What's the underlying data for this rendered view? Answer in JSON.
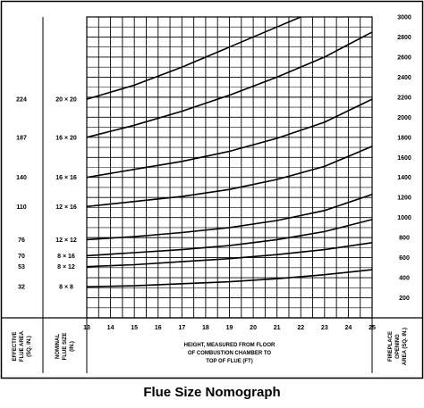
{
  "chart_data": {
    "type": "line",
    "title": "Flue Size Nomograph",
    "xlabel": [
      "HEIGHT, MEASURED FROM FLOOR",
      "OF COMBUSTION CHAMBER TO",
      "TOP OF FLUE (FT)"
    ],
    "x_ticks": [
      13,
      14,
      15,
      16,
      17,
      18,
      19,
      20,
      21,
      22,
      23,
      24,
      25
    ],
    "xlim": [
      13,
      25
    ],
    "right_axis": {
      "label": [
        "FIREPLACE",
        "OPENING",
        "AREA (SQ. IN.)"
      ],
      "ticks": [
        200,
        400,
        600,
        800,
        1000,
        1200,
        1400,
        1600,
        1800,
        2000,
        2200,
        2400,
        2600,
        2800,
        3000
      ],
      "ylim": [
        0,
        3000
      ]
    },
    "left_axis_1": {
      "label": [
        "EFFECTIVE",
        "FLUE AREA",
        "(SQ. IN.)"
      ],
      "values": [
        "224",
        "187",
        "140",
        "110",
        "76",
        "70",
        "53",
        "32"
      ]
    },
    "left_axis_2": {
      "label": [
        "NOMINAL",
        "FLUE SIZE",
        "(IN.)"
      ],
      "values": [
        "20 × 20",
        "16 × 20",
        "16 × 16",
        "12 × 16",
        "12 × 12",
        "8 × 16",
        "8 × 12",
        "8 × 8"
      ]
    },
    "series": [
      {
        "name": "20 × 20",
        "x": [
          13,
          15,
          17,
          19,
          21,
          22
        ],
        "y": [
          2180,
          2320,
          2500,
          2700,
          2900,
          3000
        ]
      },
      {
        "name": "16 × 20",
        "x": [
          13,
          15,
          17,
          19,
          21,
          23,
          25
        ],
        "y": [
          1800,
          1920,
          2060,
          2220,
          2400,
          2600,
          2850
        ]
      },
      {
        "name": "16 × 16",
        "x": [
          13,
          15,
          17,
          19,
          21,
          23,
          25
        ],
        "y": [
          1400,
          1480,
          1560,
          1660,
          1790,
          1950,
          2180
        ]
      },
      {
        "name": "12 × 16",
        "x": [
          13,
          15,
          17,
          19,
          21,
          23,
          25
        ],
        "y": [
          1110,
          1160,
          1210,
          1280,
          1380,
          1510,
          1710
        ]
      },
      {
        "name": "12 × 12",
        "x": [
          13,
          15,
          17,
          19,
          21,
          23,
          25
        ],
        "y": [
          780,
          810,
          850,
          900,
          970,
          1070,
          1230
        ]
      },
      {
        "name": "8 × 16",
        "x": [
          13,
          15,
          17,
          19,
          21,
          23,
          25
        ],
        "y": [
          620,
          650,
          680,
          720,
          780,
          860,
          980
        ]
      },
      {
        "name": "8 × 12",
        "x": [
          13,
          15,
          17,
          19,
          21,
          23,
          25
        ],
        "y": [
          510,
          530,
          560,
          590,
          630,
          680,
          750
        ]
      },
      {
        "name": "8 × 8",
        "x": [
          13,
          15,
          17,
          19,
          21,
          23,
          25
        ],
        "y": [
          310,
          320,
          340,
          360,
          390,
          430,
          480
        ]
      }
    ],
    "grid": true
  }
}
